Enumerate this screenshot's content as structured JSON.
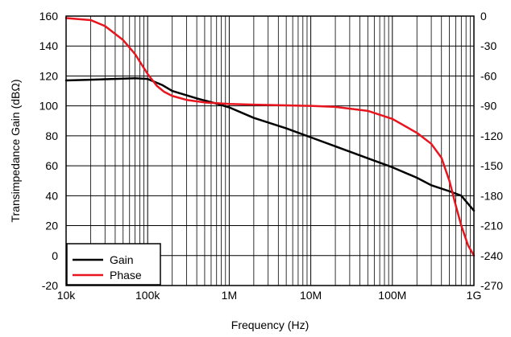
{
  "chart_data": {
    "type": "line",
    "title": "",
    "xlabel": "Frequency (Hz)",
    "ylabel": "Transimpedance Gain (dBΩ)",
    "y2label": "",
    "xscale": "log",
    "xlim": [
      10000,
      1000000000
    ],
    "ylim": [
      -20,
      160
    ],
    "y2lim": [
      -270,
      0
    ],
    "grid": true,
    "legend_position": "bottom-left",
    "x_ticks": [
      {
        "value": 10000,
        "label": "10k"
      },
      {
        "value": 100000,
        "label": "100k"
      },
      {
        "value": 1000000,
        "label": "1M"
      },
      {
        "value": 10000000,
        "label": "10M"
      },
      {
        "value": 100000000,
        "label": "100M"
      },
      {
        "value": 1000000000,
        "label": "1G"
      }
    ],
    "y_ticks": [
      {
        "value": 160,
        "label": "160"
      },
      {
        "value": 140,
        "label": "140"
      },
      {
        "value": 120,
        "label": "120"
      },
      {
        "value": 100,
        "label": "100"
      },
      {
        "value": 80,
        "label": "80"
      },
      {
        "value": 60,
        "label": "60"
      },
      {
        "value": 40,
        "label": "40"
      },
      {
        "value": 20,
        "label": "20"
      },
      {
        "value": 0,
        "label": "0"
      },
      {
        "value": -20,
        "label": "-20"
      }
    ],
    "y2_ticks": [
      {
        "value": 0,
        "label": "0"
      },
      {
        "value": -30,
        "label": "-30"
      },
      {
        "value": -60,
        "label": "-60"
      },
      {
        "value": -90,
        "label": "-90"
      },
      {
        "value": -120,
        "label": "-120"
      },
      {
        "value": -150,
        "label": "-150"
      },
      {
        "value": -180,
        "label": "-180"
      },
      {
        "value": -210,
        "label": "-210"
      },
      {
        "value": -240,
        "label": "-240"
      },
      {
        "value": -270,
        "label": "-270"
      }
    ],
    "series": [
      {
        "name": "Gain",
        "axis": "left",
        "color": "#000000",
        "x": [
          10000,
          20000,
          40000,
          70000,
          100000,
          150000,
          200000,
          400000,
          700000,
          1000000,
          2000000,
          5000000,
          10000000,
          20000000,
          50000000,
          100000000,
          200000000,
          300000000,
          500000000,
          700000000,
          1000000000
        ],
        "y": [
          117,
          117.5,
          118,
          118.5,
          118,
          114,
          110,
          105,
          101.5,
          99,
          92,
          85,
          79,
          73,
          65,
          59,
          52,
          47,
          43,
          40,
          30
        ]
      },
      {
        "name": "Phase",
        "axis": "right",
        "color": "#e8141e",
        "x": [
          10000,
          20000,
          30000,
          50000,
          70000,
          100000,
          130000,
          160000,
          200000,
          300000,
          500000,
          1000000,
          2000000,
          5000000,
          10000000,
          20000000,
          50000000,
          100000000,
          200000000,
          300000000,
          400000000,
          500000000,
          600000000,
          700000000,
          850000000,
          1000000000
        ],
        "y": [
          -2,
          -4,
          -10,
          -24,
          -38,
          -58,
          -70,
          -76,
          -80,
          -84,
          -86.5,
          -88,
          -88.8,
          -89.5,
          -90,
          -91,
          -95,
          -103,
          -117,
          -128,
          -142,
          -165,
          -190,
          -210,
          -230,
          -240
        ]
      }
    ]
  }
}
